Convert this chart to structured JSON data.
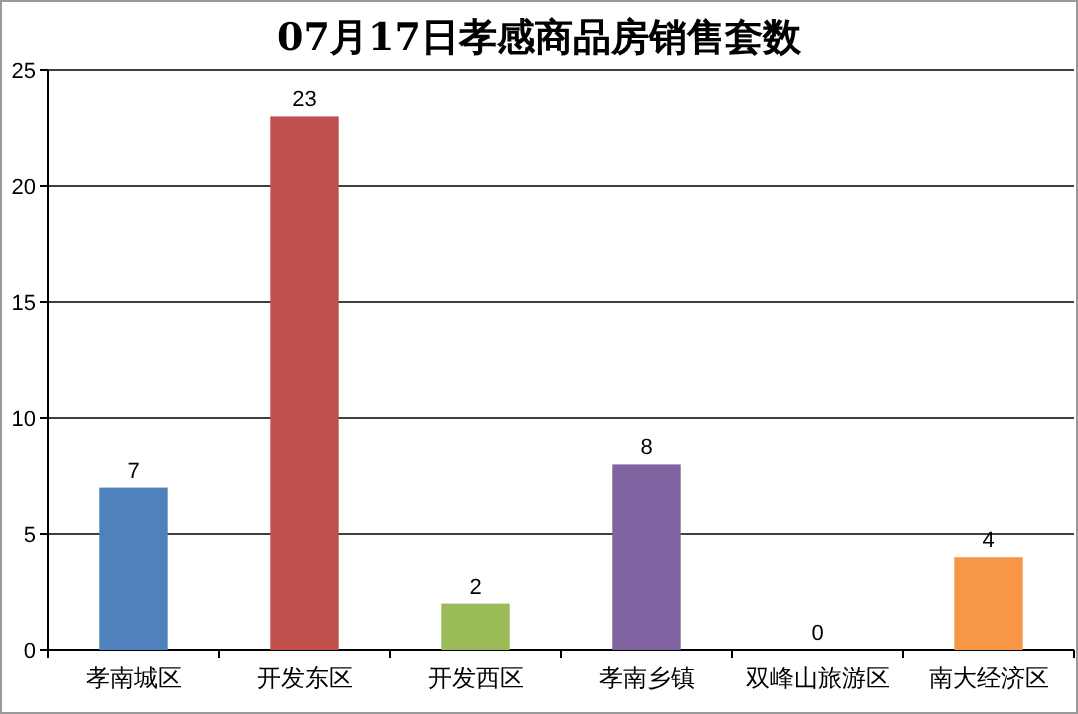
{
  "chart_data": {
    "type": "bar",
    "title": "07月17日孝感商品房销售套数",
    "categories": [
      "孝南城区",
      "开发东区",
      "开发西区",
      "孝南乡镇",
      "双峰山旅游区",
      "南大经济区"
    ],
    "values": [
      7,
      23,
      2,
      8,
      0,
      4
    ],
    "colors": [
      "#4f81bd",
      "#c0504d",
      "#9bbb59",
      "#8064a2",
      "#4bacc6",
      "#f79646"
    ],
    "ylim": [
      0,
      25
    ],
    "yticks": [
      0,
      5,
      10,
      15,
      20,
      25
    ],
    "grid": "y",
    "data_labels": true
  }
}
